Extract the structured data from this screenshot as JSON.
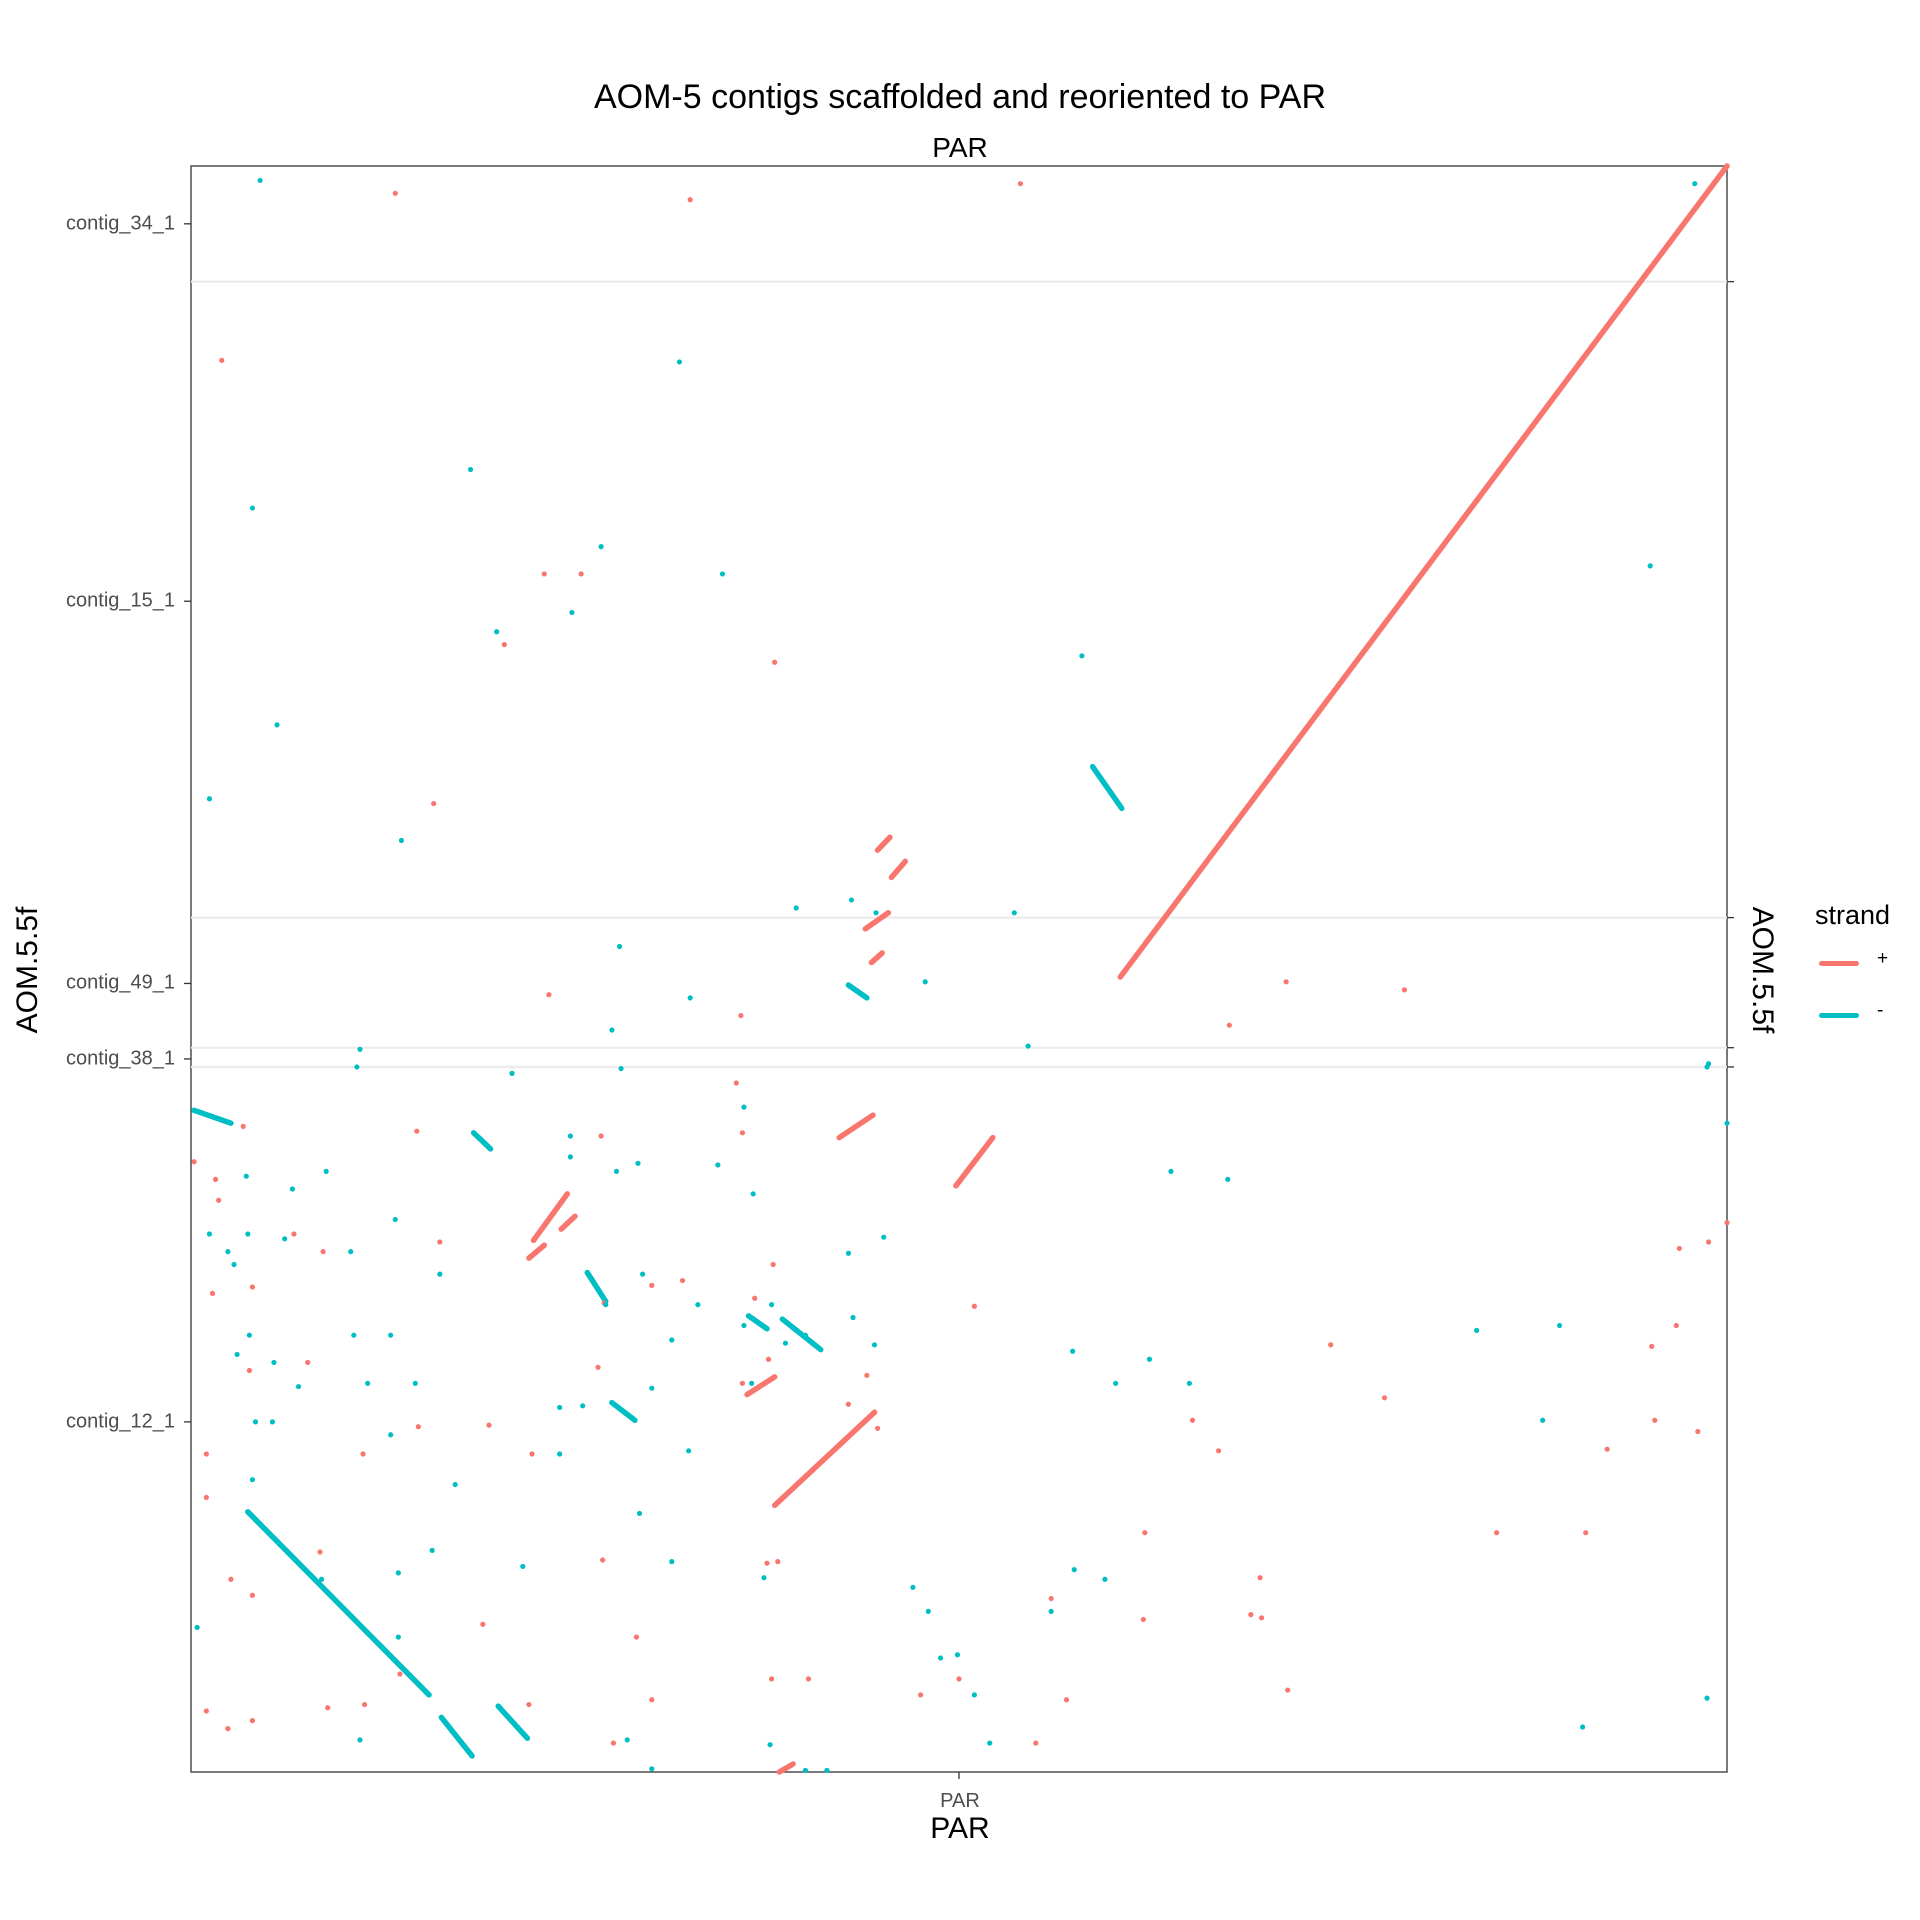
{
  "chart_data": {
    "type": "scatter",
    "title": "AOM-5 contigs scaffolded and reoriented to PAR",
    "facet_label": "PAR",
    "xlabel": "PAR",
    "ylabel": "AOM.5.5f",
    "ylabel_secondary": "AOM.5.5f",
    "x_ticks": [
      "PAR"
    ],
    "xlim": [
      0,
      100
    ],
    "ylim": [
      0,
      100
    ],
    "y_ticks": [
      {
        "label": "contig_34_1",
        "value": 96.4
      },
      {
        "label": "contig_15_1",
        "value": 72.9
      },
      {
        "label": "contig_49_1",
        "value": 49.1
      },
      {
        "label": "contig_38_1",
        "value": 44.4
      },
      {
        "label": "contig_12_1",
        "value": 21.8
      }
    ],
    "contig_boundaries": [
      92.8,
      53.2,
      45.1,
      43.9
    ],
    "grid": false,
    "legend": {
      "title": "strand",
      "placement": "right",
      "entries": [
        {
          "label": "+",
          "color": "#F8766D"
        },
        {
          "label": "-",
          "color": "#00BFC4"
        }
      ]
    },
    "series": [
      {
        "name": "+",
        "color": "#F8766D",
        "segments": [
          [
            [
              60.5,
              49.5
            ],
            [
              100,
              100
            ]
          ],
          [
            [
              38.0,
              16.6
            ],
            [
              44.5,
              22.4
            ]
          ],
          [
            [
              36.2,
              23.5
            ],
            [
              38.0,
              24.6
            ]
          ],
          [
            [
              22.3,
              33.1
            ],
            [
              24.5,
              36.0
            ]
          ],
          [
            [
              22.0,
              32.0
            ],
            [
              23.0,
              32.8
            ]
          ],
          [
            [
              24.1,
              33.8
            ],
            [
              25.0,
              34.6
            ]
          ],
          [
            [
              38.3,
              0
            ],
            [
              39.2,
              0.5
            ]
          ],
          [
            [
              49.8,
              36.5
            ],
            [
              52.2,
              39.5
            ]
          ],
          [
            [
              42.2,
              39.5
            ],
            [
              44.4,
              40.9
            ]
          ],
          [
            [
              43.9,
              52.5
            ],
            [
              45.4,
              53.5
            ]
          ],
          [
            [
              44.3,
              50.4
            ],
            [
              45.0,
              51.0
            ]
          ],
          [
            [
              45.6,
              55.7
            ],
            [
              46.5,
              56.7
            ]
          ],
          [
            [
              44.7,
              57.4
            ],
            [
              45.5,
              58.2
            ]
          ]
        ],
        "points": [
          [
            13.3,
            98.3
          ],
          [
            32.5,
            97.9
          ],
          [
            54.0,
            98.9
          ],
          [
            2.0,
            87.9
          ],
          [
            23.0,
            74.6
          ],
          [
            25.4,
            74.6
          ],
          [
            20.4,
            70.2
          ],
          [
            38.0,
            69.1
          ],
          [
            15.8,
            60.3
          ],
          [
            71.3,
            49.2
          ],
          [
            79.0,
            48.7
          ],
          [
            67.6,
            46.5
          ],
          [
            23.3,
            48.4
          ],
          [
            35.8,
            47.1
          ],
          [
            35.5,
            42.9
          ],
          [
            0.2,
            38.0
          ],
          [
            3.4,
            40.2
          ],
          [
            14.7,
            39.9
          ],
          [
            26.7,
            39.6
          ],
          [
            35.9,
            39.8
          ],
          [
            6.7,
            33.5
          ],
          [
            8.6,
            32.4
          ],
          [
            16.2,
            33.0
          ],
          [
            1.6,
            36.9
          ],
          [
            37.9,
            31.6
          ],
          [
            1.4,
            29.8
          ],
          [
            32.0,
            30.6
          ],
          [
            26.9,
            29.2
          ],
          [
            36.7,
            29.5
          ],
          [
            7.6,
            25.5
          ],
          [
            30.0,
            30.3
          ],
          [
            35.9,
            24.2
          ],
          [
            51.0,
            29.0
          ],
          [
            44.0,
            24.7
          ],
          [
            1.8,
            35.6
          ],
          [
            4.0,
            30.2
          ],
          [
            26.5,
            25.2
          ],
          [
            37.6,
            25.7
          ],
          [
            3.8,
            25.0
          ],
          [
            1.0,
            19.8
          ],
          [
            14.8,
            21.5
          ],
          [
            19.4,
            21.6
          ],
          [
            11.2,
            19.8
          ],
          [
            22.2,
            19.8
          ],
          [
            42.8,
            22.9
          ],
          [
            1.0,
            17.1
          ],
          [
            2.6,
            12.0
          ],
          [
            8.4,
            13.7
          ],
          [
            4.0,
            11.0
          ],
          [
            26.8,
            13.2
          ],
          [
            38.2,
            13.1
          ],
          [
            44.7,
            21.4
          ],
          [
            37.5,
            13.0
          ],
          [
            29.0,
            8.4
          ],
          [
            19.0,
            9.2
          ],
          [
            56.0,
            10.8
          ],
          [
            62.0,
            9.5
          ],
          [
            57.0,
            4.5
          ],
          [
            55.0,
            1.8
          ],
          [
            27.5,
            1.8
          ],
          [
            50.0,
            5.8
          ],
          [
            30.0,
            4.5
          ],
          [
            22.0,
            4.2
          ],
          [
            47.5,
            4.8
          ],
          [
            8.9,
            4.0
          ],
          [
            13.6,
            6.1
          ],
          [
            11.3,
            4.2
          ],
          [
            4.0,
            3.2
          ],
          [
            1.0,
            3.8
          ],
          [
            2.4,
            2.7
          ],
          [
            37.8,
            5.8
          ],
          [
            40.2,
            5.8
          ],
          [
            69.6,
            12.1
          ],
          [
            65.2,
            21.9
          ],
          [
            74.2,
            26.6
          ],
          [
            62.1,
            14.9
          ],
          [
            66.9,
            20.0
          ],
          [
            77.7,
            23.3
          ],
          [
            69.7,
            9.6
          ],
          [
            90.8,
            14.9
          ],
          [
            71.4,
            5.1
          ],
          [
            92.2,
            20.1
          ],
          [
            98.1,
            21.2
          ],
          [
            100,
            34.2
          ],
          [
            95.1,
            26.5
          ],
          [
            95.3,
            21.9
          ],
          [
            96.9,
            32.6
          ],
          [
            98.8,
            33.0
          ],
          [
            96.7,
            27.8
          ],
          [
            69.0,
            9.8
          ],
          [
            85.0,
            14.9
          ]
        ]
      },
      {
        "name": "-",
        "color": "#00BFC4",
        "segments": [
          [
            [
              3.7,
              16.2
            ],
            [
              15.5,
              4.8
            ]
          ],
          [
            [
              16.3,
              3.4
            ],
            [
              18.3,
              1.0
            ]
          ],
          [
            [
              20.0,
              4.1
            ],
            [
              21.9,
              2.1
            ]
          ],
          [
            [
              58.7,
              62.6
            ],
            [
              60.6,
              60.0
            ]
          ],
          [
            [
              38.5,
              28.2
            ],
            [
              41.0,
              26.3
            ]
          ],
          [
            [
              25.8,
              31.1
            ],
            [
              27.0,
              29.3
            ]
          ],
          [
            [
              27.4,
              23.0
            ],
            [
              28.9,
              21.9
            ]
          ],
          [
            [
              18.4,
              39.8
            ],
            [
              19.5,
              38.8
            ]
          ],
          [
            [
              0.2,
              41.2
            ],
            [
              2.6,
              40.4
            ]
          ],
          [
            [
              36.3,
              28.4
            ],
            [
              37.5,
              27.6
            ]
          ],
          [
            [
              42.8,
              49.0
            ],
            [
              44.0,
              48.2
            ]
          ]
        ],
        "points": [
          [
            4.5,
            99.1
          ],
          [
            31.8,
            87.8
          ],
          [
            18.2,
            81.1
          ],
          [
            4.0,
            78.7
          ],
          [
            95.0,
            75.1
          ],
          [
            34.6,
            74.6
          ],
          [
            26.7,
            76.3
          ],
          [
            19.9,
            71.0
          ],
          [
            24.8,
            72.2
          ],
          [
            5.6,
            65.2
          ],
          [
            1.2,
            60.6
          ],
          [
            13.7,
            58.0
          ],
          [
            58.0,
            69.5
          ],
          [
            39.4,
            53.8
          ],
          [
            43.0,
            54.3
          ],
          [
            27.9,
            51.4
          ],
          [
            32.5,
            48.2
          ],
          [
            11.0,
            45.0
          ],
          [
            27.4,
            46.2
          ],
          [
            54.5,
            45.2
          ],
          [
            47.8,
            49.2
          ],
          [
            44.6,
            53.5
          ],
          [
            53.6,
            53.5
          ],
          [
            28.0,
            43.8
          ],
          [
            20.9,
            43.5
          ],
          [
            10.8,
            43.9
          ],
          [
            0.2,
            41.2
          ],
          [
            98.7,
            43.9
          ],
          [
            100,
            40.4
          ],
          [
            36.0,
            41.4
          ],
          [
            24.7,
            39.6
          ],
          [
            24.7,
            38.3
          ],
          [
            27.7,
            37.4
          ],
          [
            29.1,
            37.9
          ],
          [
            34.3,
            37.8
          ],
          [
            36.6,
            36.0
          ],
          [
            8.8,
            37.4
          ],
          [
            13.3,
            34.4
          ],
          [
            6.6,
            36.3
          ],
          [
            3.6,
            37.1
          ],
          [
            63.8,
            37.4
          ],
          [
            67.5,
            36.9
          ],
          [
            45.1,
            33.3
          ],
          [
            42.8,
            32.3
          ],
          [
            1.2,
            33.5
          ],
          [
            3.7,
            33.5
          ],
          [
            6.1,
            33.2
          ],
          [
            2.4,
            32.4
          ],
          [
            2.8,
            31.6
          ],
          [
            10.4,
            32.4
          ],
          [
            16.2,
            31.0
          ],
          [
            29.4,
            31.0
          ],
          [
            33.0,
            29.1
          ],
          [
            37.8,
            29.1
          ],
          [
            27.0,
            29.1
          ],
          [
            36.0,
            27.8
          ],
          [
            31.3,
            26.9
          ],
          [
            3.8,
            27.2
          ],
          [
            10.6,
            27.2
          ],
          [
            13.0,
            27.2
          ],
          [
            40.0,
            27.2
          ],
          [
            43.1,
            28.3
          ],
          [
            44.5,
            26.6
          ],
          [
            57.4,
            26.2
          ],
          [
            62.4,
            25.7
          ],
          [
            83.7,
            27.5
          ],
          [
            89.1,
            27.8
          ],
          [
            88.0,
            21.9
          ],
          [
            3.0,
            26.0
          ],
          [
            5.4,
            25.5
          ],
          [
            11.5,
            24.2
          ],
          [
            14.6,
            24.2
          ],
          [
            65.0,
            24.2
          ],
          [
            60.2,
            24.2
          ],
          [
            7.0,
            24.0
          ],
          [
            5.3,
            21.8
          ],
          [
            4.2,
            21.8
          ],
          [
            24.0,
            22.7
          ],
          [
            25.5,
            22.8
          ],
          [
            13.0,
            21.0
          ],
          [
            24.0,
            19.8
          ],
          [
            30.0,
            23.9
          ],
          [
            32.4,
            20.0
          ],
          [
            17.2,
            17.9
          ],
          [
            4.0,
            18.2
          ],
          [
            15.7,
            13.8
          ],
          [
            21.6,
            12.8
          ],
          [
            8.5,
            12.0
          ],
          [
            13.5,
            12.4
          ],
          [
            31.3,
            13.1
          ],
          [
            37.3,
            12.1
          ],
          [
            57.5,
            12.6
          ],
          [
            59.5,
            12.0
          ],
          [
            47.0,
            11.5
          ],
          [
            56.0,
            10.0
          ],
          [
            48.0,
            10.0
          ],
          [
            13.5,
            8.4
          ],
          [
            11.0,
            2.0
          ],
          [
            28.4,
            2.0
          ],
          [
            30.0,
            0.2
          ],
          [
            37.7,
            1.7
          ],
          [
            52.0,
            1.8
          ],
          [
            41.4,
            0.1
          ],
          [
            40.0,
            0.1
          ],
          [
            0.4,
            9.0
          ],
          [
            29.2,
            16.1
          ],
          [
            36.5,
            24.2
          ],
          [
            38.7,
            26.7
          ],
          [
            51.0,
            4.8
          ],
          [
            48.8,
            7.1
          ],
          [
            49.9,
            7.3
          ],
          [
            90.6,
            2.8
          ],
          [
            98.7,
            4.6
          ],
          [
            98.8,
            44.1
          ],
          [
            97.9,
            98.9
          ],
          [
            0.2,
            41.2
          ]
        ]
      }
    ]
  }
}
